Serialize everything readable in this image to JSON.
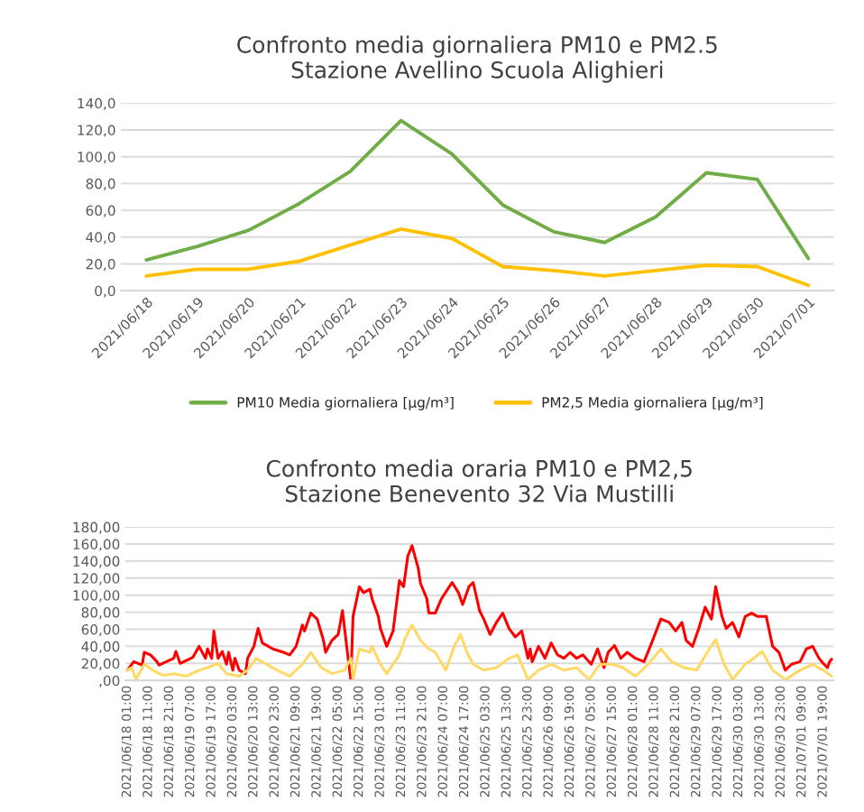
{
  "chart_data": [
    {
      "type": "line",
      "title": "Confronto media giornaliera PM10 e PM2.5\nStazione Avellino Scuola Alighieri",
      "categories": [
        "2021/06/18",
        "2021/06/19",
        "2021/06/20",
        "2021/06/21",
        "2021/06/22",
        "2021/06/23",
        "2021/06/24",
        "2021/06/25",
        "2021/06/26",
        "2021/06/27",
        "2021/06/28",
        "2021/06/29",
        "2021/06/30",
        "2021/07/01"
      ],
      "series": [
        {
          "name": "PM10 Media giornaliera [µg/m³]",
          "color": "#70ad47",
          "values": [
            23,
            33,
            45,
            65,
            89,
            127,
            102,
            64,
            44,
            36,
            55,
            88,
            83,
            24
          ]
        },
        {
          "name": "PM2,5 Media giornaliera [µg/m³]",
          "color": "#ffc000",
          "values": [
            11,
            16,
            16,
            22,
            34,
            46,
            39,
            18,
            15,
            11,
            15,
            19,
            18,
            4
          ]
        }
      ],
      "ylim": [
        0,
        140
      ],
      "yticks": [
        {
          "value": 0,
          "label": "0,0"
        },
        {
          "value": 20,
          "label": "20,0"
        },
        {
          "value": 40,
          "label": "40,0"
        },
        {
          "value": 60,
          "label": "60,0"
        },
        {
          "value": 80,
          "label": "80,0"
        },
        {
          "value": 100,
          "label": "100,0"
        },
        {
          "value": 120,
          "label": "120,0"
        },
        {
          "value": 140,
          "label": "140,0"
        }
      ],
      "grid": "y",
      "legend": "bottom",
      "marker": "none",
      "line_style": "solid"
    },
    {
      "type": "line",
      "title": "Confronto media oraria PM10 e PM2,5\nStazione Benevento 32 Via Mustilli",
      "series": [
        {
          "color": "#ff0000",
          "x": [
            "2021-06-18T01:00",
            "2021-06-18T04:00",
            "2021-06-18T08:00",
            "2021-06-18T09:00",
            "2021-06-18T12:00",
            "2021-06-18T15:00",
            "2021-06-18T16:00",
            "2021-06-18T23:00",
            "2021-06-19T00:00",
            "2021-06-19T02:00",
            "2021-06-19T08:00",
            "2021-06-19T11:00",
            "2021-06-19T14:00",
            "2021-06-19T15:00",
            "2021-06-19T17:00",
            "2021-06-19T18:00",
            "2021-06-19T20:00",
            "2021-06-19T22:00",
            "2021-06-20T00:00",
            "2021-06-20T01:00",
            "2021-06-20T03:00",
            "2021-06-20T04:00",
            "2021-06-20T06:00",
            "2021-06-20T09:00",
            "2021-06-20T10:00",
            "2021-06-20T13:00",
            "2021-06-20T15:00",
            "2021-06-20T17:00",
            "2021-06-20T22:00",
            "2021-06-21T03:00",
            "2021-06-21T06:00",
            "2021-06-21T09:00",
            "2021-06-21T12:00",
            "2021-06-21T13:00",
            "2021-06-21T16:00",
            "2021-06-21T19:00",
            "2021-06-21T22:00",
            "2021-06-21T23:00",
            "2021-06-22T02:00",
            "2021-06-22T05:00",
            "2021-06-22T07:00",
            "2021-06-22T09:00",
            "2021-06-22T11:00",
            "2021-06-22T12:00",
            "2021-06-22T15:00",
            "2021-06-22T17:00",
            "2021-06-22T20:00",
            "2021-06-22T21:00",
            "2021-06-23T00:00",
            "2021-06-23T01:00",
            "2021-06-23T04:00",
            "2021-06-23T07:00",
            "2021-06-23T10:00",
            "2021-06-23T12:00",
            "2021-06-23T14:00",
            "2021-06-23T16:00",
            "2021-06-23T19:00",
            "2021-06-23T20:00",
            "2021-06-23T23:00",
            "2021-06-24T00:00",
            "2021-06-24T03:00",
            "2021-06-24T06:00",
            "2021-06-24T11:00",
            "2021-06-24T14:00",
            "2021-06-24T16:00",
            "2021-06-24T19:00",
            "2021-06-24T21:00",
            "2021-06-25T00:00",
            "2021-06-25T02:00",
            "2021-06-25T05:00",
            "2021-06-25T08:00",
            "2021-06-25T11:00",
            "2021-06-25T14:00",
            "2021-06-25T17:00",
            "2021-06-25T20:00",
            "2021-06-25T23:00",
            "2021-06-26T00:00",
            "2021-06-26T01:00",
            "2021-06-26T04:00",
            "2021-06-26T07:00",
            "2021-06-26T10:00",
            "2021-06-26T13:00",
            "2021-06-26T16:00",
            "2021-06-26T19:00",
            "2021-06-26T22:00",
            "2021-06-27T01:00",
            "2021-06-27T05:00",
            "2021-06-27T08:00",
            "2021-06-27T11:00",
            "2021-06-27T13:00",
            "2021-06-27T16:00",
            "2021-06-27T19:00",
            "2021-06-27T22:00",
            "2021-06-28T02:00",
            "2021-06-28T06:00",
            "2021-06-28T09:00",
            "2021-06-28T14:00",
            "2021-06-28T18:00",
            "2021-06-28T21:00",
            "2021-06-29T00:00",
            "2021-06-29T02:00",
            "2021-06-29T05:00",
            "2021-06-29T08:00",
            "2021-06-29T11:00",
            "2021-06-29T14:00",
            "2021-06-29T16:00",
            "2021-06-29T19:00",
            "2021-06-29T21:00",
            "2021-06-30T00:00",
            "2021-06-30T03:00",
            "2021-06-30T06:00",
            "2021-06-30T09:00",
            "2021-06-30T12:00",
            "2021-06-30T16:00",
            "2021-06-30T19:00",
            "2021-06-30T22:00",
            "2021-07-01T01:00",
            "2021-07-01T04:00",
            "2021-07-01T08:00",
            "2021-07-01T11:00",
            "2021-07-01T14:00",
            "2021-07-01T17:00",
            "2021-07-01T19:00",
            "2021-07-01T21:00",
            "2021-07-01T22:00",
            "2021-07-01T23:00"
          ],
          "values": [
            12,
            22,
            18,
            33,
            30,
            22,
            18,
            26,
            34,
            20,
            27,
            40,
            26,
            37,
            26,
            58,
            26,
            34,
            19,
            33,
            12,
            26,
            12,
            8,
            26,
            40,
            61,
            44,
            37,
            33,
            30,
            40,
            65,
            58,
            79,
            72,
            47,
            33,
            47,
            54,
            82,
            40,
            0,
            75,
            110,
            103,
            107,
            96,
            75,
            61,
            40,
            58,
            117,
            110,
            146,
            158,
            131,
            114,
            96,
            79,
            79,
            96,
            115,
            103,
            89,
            110,
            115,
            82,
            72,
            54,
            68,
            79,
            61,
            51,
            58,
            26,
            37,
            22,
            40,
            26,
            44,
            30,
            26,
            33,
            26,
            30,
            19,
            37,
            15,
            33,
            41,
            26,
            33,
            26,
            22,
            40,
            72,
            68,
            58,
            68,
            47,
            40,
            61,
            86,
            72,
            110,
            75,
            61,
            68,
            51,
            75,
            79,
            75,
            75,
            40,
            33,
            12,
            19,
            22,
            37,
            40,
            26,
            20,
            15,
            22,
            25
          ]
        },
        {
          "color": "#ffd966",
          "x": [
            "2021-06-18T01:00",
            "2021-06-18T03:00",
            "2021-06-18T05:00",
            "2021-06-18T09:00",
            "2021-06-18T13:00",
            "2021-06-18T18:00",
            "2021-06-18T23:00",
            "2021-06-19T05:00",
            "2021-06-19T11:00",
            "2021-06-19T15:00",
            "2021-06-19T20:00",
            "2021-06-20T00:00",
            "2021-06-20T06:00",
            "2021-06-20T10:00",
            "2021-06-20T14:00",
            "2021-06-20T19:00",
            "2021-06-21T00:00",
            "2021-06-21T06:00",
            "2021-06-21T12:00",
            "2021-06-21T16:00",
            "2021-06-21T21:00",
            "2021-06-22T02:00",
            "2021-06-22T08:00",
            "2021-06-22T11:00",
            "2021-06-22T12:00",
            "2021-06-22T15:00",
            "2021-06-22T20:00",
            "2021-06-22T21:00",
            "2021-06-23T01:00",
            "2021-06-23T04:00",
            "2021-06-23T10:00",
            "2021-06-23T13:00",
            "2021-06-23T16:00",
            "2021-06-23T20:00",
            "2021-06-24T00:00",
            "2021-06-24T03:00",
            "2021-06-24T08:00",
            "2021-06-24T12:00",
            "2021-06-24T15:00",
            "2021-06-24T18:00",
            "2021-06-24T21:00",
            "2021-06-25T02:00",
            "2021-06-25T08:00",
            "2021-06-25T14:00",
            "2021-06-25T18:00",
            "2021-06-25T23:00",
            "2021-06-26T04:00",
            "2021-06-26T10:00",
            "2021-06-26T16:00",
            "2021-06-26T22:00",
            "2021-06-27T04:00",
            "2021-06-27T09:00",
            "2021-06-27T15:00",
            "2021-06-27T20:00",
            "2021-06-28T02:00",
            "2021-06-28T08:00",
            "2021-06-28T14:00",
            "2021-06-28T19:00",
            "2021-06-29T01:00",
            "2021-06-29T07:00",
            "2021-06-29T12:00",
            "2021-06-29T16:00",
            "2021-06-29T20:00",
            "2021-06-30T00:00",
            "2021-06-30T06:00",
            "2021-06-30T10:00",
            "2021-06-30T14:00",
            "2021-06-30T19:00",
            "2021-07-01T01:00",
            "2021-07-01T08:00",
            "2021-07-01T14:00",
            "2021-07-01T19:00",
            "2021-07-01T23:00"
          ],
          "values": [
            12,
            15,
            1,
            19,
            12,
            6,
            8,
            5,
            12,
            15,
            20,
            8,
            5,
            12,
            26,
            19,
            12,
            5,
            19,
            33,
            15,
            8,
            12,
            26,
            1,
            37,
            33,
            40,
            19,
            8,
            30,
            51,
            65,
            47,
            37,
            33,
            12,
            40,
            54,
            33,
            19,
            12,
            15,
            26,
            30,
            1,
            12,
            19,
            12,
            15,
            1,
            19,
            19,
            15,
            5,
            19,
            37,
            22,
            15,
            12,
            33,
            48,
            19,
            1,
            19,
            26,
            34,
            12,
            1,
            12,
            19,
            12,
            5
          ]
        }
      ],
      "xlim": [
        "2021-06-18T00:00",
        "2021-07-02T00:00"
      ],
      "xticks": [
        {
          "value": "2021-06-18T01:00",
          "label": "2021/06/18 01:00"
        },
        {
          "value": "2021-06-18T11:00",
          "label": "2021/06/18 11:00"
        },
        {
          "value": "2021-06-18T21:00",
          "label": "2021/06/18 21:00"
        },
        {
          "value": "2021-06-19T07:00",
          "label": "2021/06/19 07:00"
        },
        {
          "value": "2021-06-19T17:00",
          "label": "2021/06/19 17:00"
        },
        {
          "value": "2021-06-20T03:00",
          "label": "2021/06/20 03:00"
        },
        {
          "value": "2021-06-20T13:00",
          "label": "2021/06/20 13:00"
        },
        {
          "value": "2021-06-20T23:00",
          "label": "2021/06/20 23:00"
        },
        {
          "value": "2021-06-21T09:00",
          "label": "2021/06/21 09:00"
        },
        {
          "value": "2021-06-21T19:00",
          "label": "2021/06/21 19:00"
        },
        {
          "value": "2021-06-22T05:00",
          "label": "2021/06/22 05:00"
        },
        {
          "value": "2021-06-22T15:00",
          "label": "2021/06/22 15:00"
        },
        {
          "value": "2021-06-23T01:00",
          "label": "2021/06/23 01:00"
        },
        {
          "value": "2021-06-23T11:00",
          "label": "2021/06/23 11:00"
        },
        {
          "value": "2021-06-23T21:00",
          "label": "2021/06/23 21:00"
        },
        {
          "value": "2021-06-24T07:00",
          "label": "2021/06/24 07:00"
        },
        {
          "value": "2021-06-24T17:00",
          "label": "2021/06/24 17:00"
        },
        {
          "value": "2021-06-25T03:00",
          "label": "2021/06/25 03:00"
        },
        {
          "value": "2021-06-25T13:00",
          "label": "2021/06/25 13:00"
        },
        {
          "value": "2021-06-25T23:00",
          "label": "2021/06/25 23:00"
        },
        {
          "value": "2021-06-26T09:00",
          "label": "2021/06/26 09:00"
        },
        {
          "value": "2021-06-26T19:00",
          "label": "2021/06/26 19:00"
        },
        {
          "value": "2021-06-27T05:00",
          "label": "2021/06/27 05:00"
        },
        {
          "value": "2021-06-27T15:00",
          "label": "2021/06/27 15:00"
        },
        {
          "value": "2021-06-28T01:00",
          "label": "2021/06/28 01:00"
        },
        {
          "value": "2021-06-28T11:00",
          "label": "2021/06/28 11:00"
        },
        {
          "value": "2021-06-28T21:00",
          "label": "2021/06/28 21:00"
        },
        {
          "value": "2021-06-29T07:00",
          "label": "2021/06/29 07:00"
        },
        {
          "value": "2021-06-29T17:00",
          "label": "2021/06/29 17:00"
        },
        {
          "value": "2021-06-30T03:00",
          "label": "2021/06/30 03:00"
        },
        {
          "value": "2021-06-30T13:00",
          "label": "2021/06/30 13:00"
        },
        {
          "value": "2021-06-30T23:00",
          "label": "2021/06/30 23:00"
        },
        {
          "value": "2021-07-01T09:00",
          "label": "2021/07/01 09:00"
        },
        {
          "value": "2021-07-01T19:00",
          "label": "2021/07/01 19:00"
        }
      ],
      "ylim": [
        0,
        180
      ],
      "yticks": [
        {
          "value": 0,
          "label": ",00"
        },
        {
          "value": 20,
          "label": "20,00"
        },
        {
          "value": 40,
          "label": "40,00"
        },
        {
          "value": 60,
          "label": "60,00"
        },
        {
          "value": 80,
          "label": "80,00"
        },
        {
          "value": 100,
          "label": "100,00"
        },
        {
          "value": 120,
          "label": "120,00"
        },
        {
          "value": 140,
          "label": "140,00"
        },
        {
          "value": 160,
          "label": "160,00"
        },
        {
          "value": 180,
          "label": "180,00"
        }
      ],
      "grid": "y",
      "marker": "none",
      "line_style": "solid"
    }
  ]
}
